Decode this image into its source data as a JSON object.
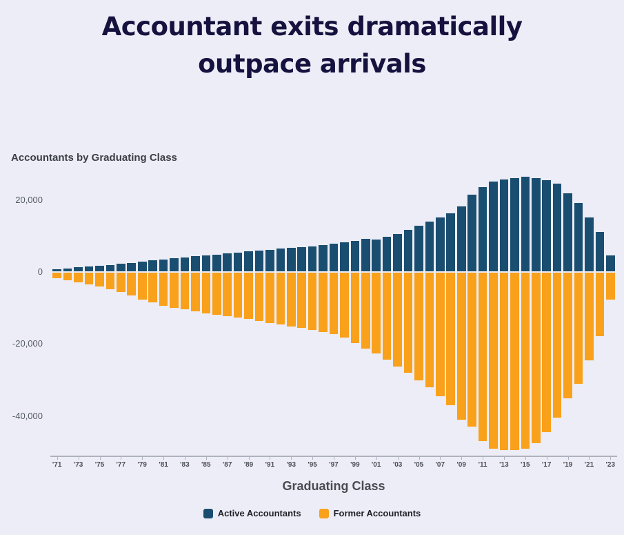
{
  "title": {
    "line1": "Accountant exits dramatically",
    "line2": "outpace arrivals"
  },
  "chart": {
    "subtitle": "Accountants by Graduating Class",
    "xlabel": "Graduating Class",
    "legend": [
      {
        "label": "Active Accountants",
        "color": "#1a4e71"
      },
      {
        "label": "Former Accountants",
        "color": "#f9a11b"
      }
    ]
  },
  "colors": {
    "background": "#ecedf6",
    "title_text": "#16123f",
    "active_bar": "#1a4e71",
    "former_bar": "#f9a11b",
    "axis": "#aeb2bd"
  },
  "chart_data": {
    "type": "bar",
    "title": "Accountants by Graduating Class",
    "xlabel": "Graduating Class",
    "ylabel": "",
    "grid": false,
    "legend_position": "bottom",
    "ylim": [
      -51000,
      28000
    ],
    "x": [
      1971,
      1972,
      1973,
      1974,
      1975,
      1976,
      1977,
      1978,
      1979,
      1980,
      1981,
      1982,
      1983,
      1984,
      1985,
      1986,
      1987,
      1988,
      1989,
      1990,
      1991,
      1992,
      1993,
      1994,
      1995,
      1996,
      1997,
      1998,
      1999,
      2000,
      2001,
      2002,
      2003,
      2004,
      2005,
      2006,
      2007,
      2008,
      2009,
      2010,
      2011,
      2012,
      2013,
      2014,
      2015,
      2016,
      2017,
      2018,
      2019,
      2020,
      2021,
      2022,
      2023
    ],
    "x_tick_labels": [
      "'71",
      "'73",
      "'75",
      "'77",
      "'79",
      "'81",
      "'83",
      "'85",
      "'87",
      "'89",
      "'91",
      "'93",
      "'95",
      "'97",
      "'99",
      "'01",
      "'03",
      "'05",
      "'07",
      "'09",
      "'11",
      "'13",
      "'15",
      "'17",
      "'19",
      "'21",
      "'23"
    ],
    "y_ticks": [
      {
        "label": "20,000",
        "value": 20000
      },
      {
        "label": "0",
        "value": 0
      },
      {
        "label": "-20,000",
        "value": -20000
      },
      {
        "label": "-40,000",
        "value": -40000
      }
    ],
    "series": [
      {
        "name": "Active Accountants",
        "color": "#1a4e71",
        "values": [
          800,
          1000,
          1300,
          1500,
          1800,
          2000,
          2300,
          2600,
          2900,
          3200,
          3500,
          3800,
          4100,
          4400,
          4700,
          4900,
          5200,
          5400,
          5700,
          6000,
          6200,
          6500,
          6700,
          7000,
          7200,
          7500,
          7800,
          8200,
          8700,
          9200,
          9000,
          9800,
          10600,
          11800,
          12900,
          14100,
          15200,
          16400,
          18200,
          21500,
          23600,
          25100,
          25800,
          26100,
          26500,
          26100,
          25600,
          24500,
          21800,
          19200,
          15200,
          11200,
          4600
        ]
      },
      {
        "name": "Former Accountants",
        "color": "#f9a11b",
        "values": [
          -1700,
          -2200,
          -2800,
          -3400,
          -4100,
          -4800,
          -5600,
          -6600,
          -7700,
          -8500,
          -9300,
          -9900,
          -10400,
          -10900,
          -11400,
          -11800,
          -12300,
          -12700,
          -13100,
          -13600,
          -14100,
          -14600,
          -15100,
          -15600,
          -16100,
          -16600,
          -17300,
          -18300,
          -19700,
          -21200,
          -22600,
          -24300,
          -26200,
          -28000,
          -30000,
          -32000,
          -34500,
          -37000,
          -41000,
          -43000,
          -47000,
          -49000,
          -49500,
          -49500,
          -49000,
          -47500,
          -44500,
          -40500,
          -35000,
          -31000,
          -24500,
          -17900,
          -7700
        ]
      }
    ]
  }
}
